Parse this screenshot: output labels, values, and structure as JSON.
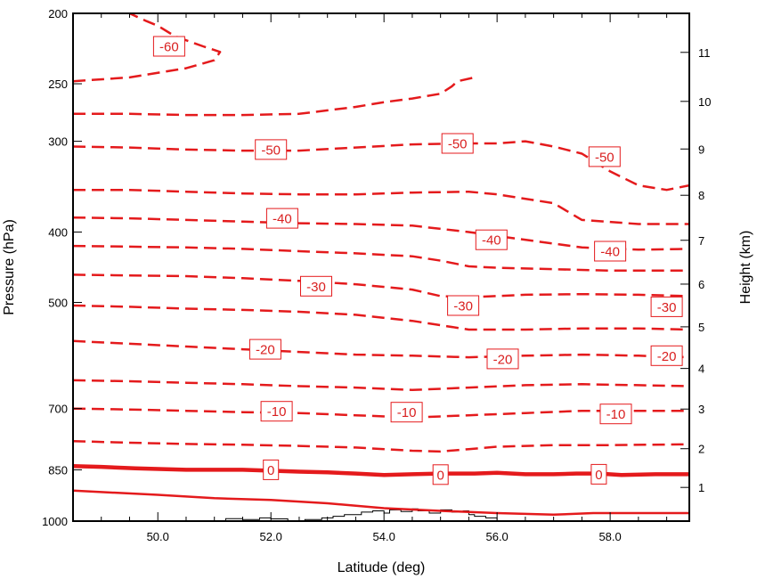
{
  "chart_data": {
    "type": "line",
    "xlabel": "Latitude (deg)",
    "ylabel": "Pressure (hPa)",
    "y2label": "Height (km)",
    "xlim": [
      48.5,
      59.4
    ],
    "ylim": [
      1000,
      200
    ],
    "y_scale": "log",
    "x_ticks": [
      "50.0",
      "52.0",
      "54.0",
      "56.0",
      "58.0"
    ],
    "y_ticks": [
      "200",
      "250",
      "300",
      "400",
      "500",
      "700",
      "850",
      "1000"
    ],
    "y2_ticks": [
      "1",
      "2",
      "3",
      "4",
      "5",
      "6",
      "7",
      "8",
      "9",
      "10",
      "11"
    ],
    "contour_color": "#e41a1c",
    "terrain_color": "#000000",
    "series": [
      {
        "level": 0,
        "style": "solid-thick",
        "x": [
          48.5,
          49.0,
          49.6,
          50.5,
          51.5,
          52.5,
          53.0,
          53.5,
          54.0,
          54.5,
          55.0,
          55.6,
          56.0,
          56.5,
          57.0,
          57.4,
          57.8,
          58.2,
          58.8,
          59.4
        ],
        "y": [
          840,
          842,
          846,
          850,
          850,
          855,
          857,
          860,
          864,
          862,
          860,
          860,
          858,
          862,
          862,
          860,
          860,
          864,
          862,
          862
        ]
      },
      {
        "level": 5,
        "style": "solid",
        "x": [
          48.5,
          49.0,
          50.0,
          51.0,
          52.0,
          53.0,
          54.0,
          55.0,
          56.0,
          57.0,
          57.7,
          58.2,
          59.4
        ],
        "y": [
          908,
          912,
          920,
          930,
          935,
          945,
          960,
          968,
          975,
          980,
          975,
          975,
          975
        ]
      },
      {
        "level": -5,
        "style": "dashed",
        "x": [
          48.5,
          49.5,
          50.5,
          51.5,
          52.5,
          53.5,
          54.5,
          55.0,
          55.5,
          56.0,
          57.0,
          58.0,
          59.4
        ],
        "y": [
          776,
          780,
          783,
          785,
          788,
          792,
          800,
          802,
          796,
          790,
          786,
          786,
          784
        ]
      },
      {
        "level": -10,
        "style": "dashed",
        "x": [
          48.5,
          49.5,
          50.5,
          51.5,
          52.5,
          53.5,
          54.5,
          55.5,
          56.5,
          57.5,
          58.5,
          59.4
        ],
        "y": [
          700,
          702,
          705,
          708,
          710,
          715,
          720,
          715,
          710,
          705,
          705,
          705
        ]
      },
      {
        "level": -15,
        "style": "dashed",
        "x": [
          48.5,
          49.5,
          50.5,
          51.5,
          52.5,
          53.5,
          54.5,
          55.5,
          56.5,
          57.5,
          58.5,
          59.4
        ],
        "y": [
          640,
          642,
          645,
          648,
          652,
          655,
          660,
          655,
          650,
          648,
          650,
          652
        ]
      },
      {
        "level": -20,
        "style": "dashed",
        "x": [
          48.5,
          49.5,
          50.5,
          51.5,
          52.5,
          53.5,
          54.5,
          55.5,
          56.5,
          57.5,
          58.5,
          59.4
        ],
        "y": [
          565,
          570,
          575,
          580,
          585,
          590,
          592,
          595,
          592,
          590,
          592,
          595
        ]
      },
      {
        "level": -25,
        "style": "dashed",
        "x": [
          48.5,
          49.5,
          50.5,
          51.5,
          52.5,
          53.5,
          54.5,
          55.5,
          56.0,
          56.5,
          57.5,
          58.5,
          59.4
        ],
        "y": [
          505,
          507,
          510,
          512,
          515,
          520,
          530,
          545,
          545,
          545,
          543,
          543,
          545
        ]
      },
      {
        "level": -30,
        "style": "dashed",
        "x": [
          48.5,
          49.5,
          50.5,
          51.5,
          52.5,
          53.5,
          54.5,
          55.0,
          55.5,
          56.5,
          57.5,
          58.5,
          59.4
        ],
        "y": [
          458,
          459,
          460,
          463,
          467,
          472,
          480,
          490,
          492,
          488,
          487,
          488,
          490
        ]
      },
      {
        "level": -35,
        "style": "dashed",
        "x": [
          48.5,
          49.5,
          50.5,
          51.5,
          52.5,
          53.5,
          54.5,
          55.0,
          55.5,
          56.0,
          57.0,
          58.0,
          59.4
        ],
        "y": [
          418,
          419,
          420,
          422,
          425,
          428,
          432,
          438,
          446,
          448,
          450,
          452,
          452
        ]
      },
      {
        "level": -40,
        "style": "dashed",
        "x": [
          48.5,
          49.5,
          50.5,
          51.5,
          52.5,
          53.5,
          54.5,
          55.5,
          56.0,
          57.0,
          57.5,
          58.5,
          59.4
        ],
        "y": [
          382,
          383,
          385,
          387,
          389,
          390,
          392,
          400,
          405,
          415,
          420,
          423,
          422
        ]
      },
      {
        "level": -45,
        "style": "dashed",
        "x": [
          48.5,
          49.5,
          50.5,
          51.5,
          52.5,
          53.5,
          54.5,
          55.5,
          56.0,
          57.0,
          57.5,
          58.5,
          59.4
        ],
        "y": [
          350,
          350,
          352,
          354,
          355,
          355,
          353,
          352,
          355,
          365,
          385,
          390,
          390
        ]
      },
      {
        "level": -50,
        "style": "dashed",
        "x": [
          48.5,
          49.5,
          50.5,
          51.5,
          52.5,
          53.5,
          54.5,
          55.5,
          56.0,
          56.5,
          57.0,
          57.5,
          58.0,
          58.5,
          59.0,
          59.4
        ],
        "y": [
          305,
          306,
          308,
          309,
          309,
          306,
          303,
          302,
          302,
          300,
          305,
          312,
          330,
          345,
          350,
          345
        ]
      },
      {
        "level": -55,
        "style": "dashed",
        "x": [
          48.5,
          49.5,
          50.5,
          51.5,
          52.5,
          53.5,
          54.0,
          54.5,
          55.0,
          55.2,
          55.3,
          55.6
        ],
        "y": [
          275,
          275,
          276,
          276,
          275,
          269,
          265,
          262,
          258,
          252,
          248,
          245
        ]
      },
      {
        "level": -60,
        "style": "dashed",
        "x": [
          48.5,
          49.5,
          50.5,
          51.0,
          51.1,
          50.8,
          50.3,
          50.0,
          49.8,
          49.5
        ],
        "y": [
          248,
          245,
          238,
          232,
          226,
          222,
          215,
          208,
          205,
          200
        ]
      }
    ],
    "labels": [
      {
        "text": "-60",
        "x": 50.2,
        "y": 222
      },
      {
        "text": "-50",
        "x": 52.0,
        "y": 308
      },
      {
        "text": "-50",
        "x": 55.3,
        "y": 302
      },
      {
        "text": "-50",
        "x": 57.9,
        "y": 315
      },
      {
        "text": "-40",
        "x": 52.2,
        "y": 383
      },
      {
        "text": "-40",
        "x": 55.9,
        "y": 410
      },
      {
        "text": "-40",
        "x": 58.0,
        "y": 425
      },
      {
        "text": "-30",
        "x": 52.8,
        "y": 475
      },
      {
        "text": "-30",
        "x": 55.4,
        "y": 505
      },
      {
        "text": "-30",
        "x": 59.0,
        "y": 507
      },
      {
        "text": "-20",
        "x": 51.9,
        "y": 580
      },
      {
        "text": "-20",
        "x": 56.1,
        "y": 598
      },
      {
        "text": "-20",
        "x": 59.0,
        "y": 592
      },
      {
        "text": "-10",
        "x": 52.1,
        "y": 706
      },
      {
        "text": "-10",
        "x": 54.4,
        "y": 708
      },
      {
        "text": "-10",
        "x": 58.1,
        "y": 712
      },
      {
        "text": "0",
        "x": 52.0,
        "y": 850
      },
      {
        "text": "0",
        "x": 55.0,
        "y": 863
      },
      {
        "text": "0",
        "x": 57.8,
        "y": 862
      }
    ],
    "terrain": {
      "x": [
        50.9,
        51.2,
        51.5,
        51.8,
        52.0,
        52.3,
        52.6,
        52.9,
        53.1,
        53.3,
        53.6,
        53.8,
        54.0,
        54.1,
        54.3,
        54.5,
        54.6,
        54.8,
        55.0,
        55.2,
        55.4,
        55.5,
        55.6,
        55.8,
        56.0
      ],
      "y": [
        1000,
        992,
        995,
        990,
        993,
        1000,
        995,
        990,
        985,
        980,
        972,
        968,
        975,
        965,
        970,
        962,
        968,
        975,
        965,
        972,
        968,
        980,
        985,
        990,
        1000
      ]
    }
  }
}
